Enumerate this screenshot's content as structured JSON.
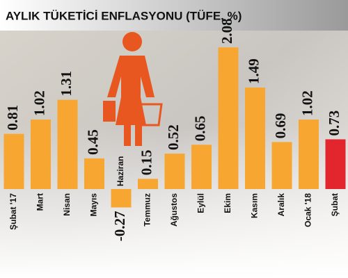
{
  "chart_data": {
    "type": "bar",
    "title": "AYLIK TÜKETİCİ ENFLASYONU (TÜFE, %)",
    "categories": [
      "Şubat '17",
      "Mart",
      "Nisan",
      "Mayıs",
      "Haziran",
      "Temmuz",
      "Ağustos",
      "Eylül",
      "Ekim",
      "Kasım",
      "Aralık",
      "Ocak '18",
      "Şubat"
    ],
    "values": [
      0.81,
      1.02,
      1.31,
      0.45,
      -0.27,
      0.15,
      0.52,
      0.65,
      2.08,
      1.49,
      0.69,
      1.02,
      0.73
    ],
    "colors": [
      "#f7a631",
      "#f7a631",
      "#f7a631",
      "#f7a631",
      "#f7a631",
      "#f7a631",
      "#f7a631",
      "#f7a631",
      "#f7a631",
      "#f7a631",
      "#f7a631",
      "#f7a631",
      "#e3262d"
    ]
  }
}
